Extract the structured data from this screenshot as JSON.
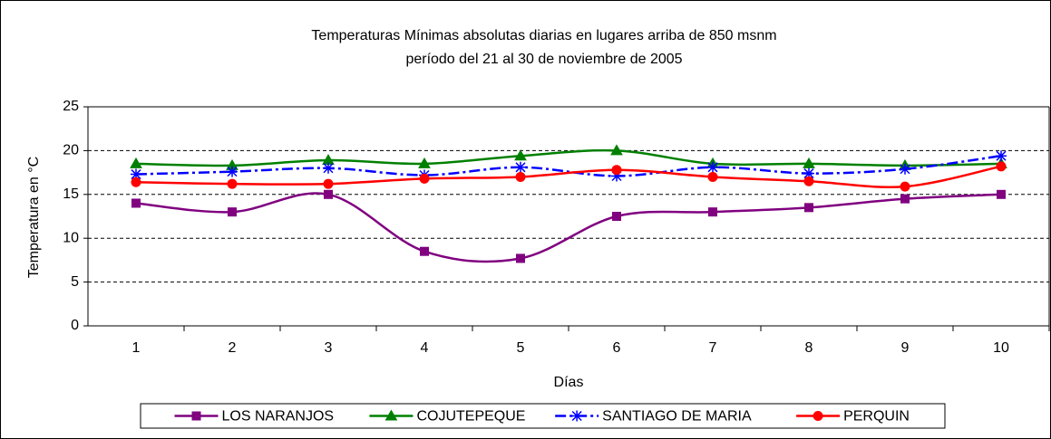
{
  "chart_data": {
    "type": "line",
    "title": "Temperaturas Mínimas absolutas diarias en lugares arriba de 850 msnm",
    "subtitle": "período del 21 al 30 de noviembre de 2005",
    "x_label": "Días",
    "y_label": "Temperatura en °C",
    "categories": [
      "1",
      "2",
      "3",
      "4",
      "5",
      "6",
      "7",
      "8",
      "9",
      "10"
    ],
    "series": [
      {
        "name": "LOS NARANJOS",
        "color": "#800080",
        "marker": "square",
        "dash": "solid",
        "values": [
          14,
          13,
          15,
          8.5,
          7.7,
          12.5,
          13,
          13.5,
          14.5,
          15
        ]
      },
      {
        "name": "COJUTEPEQUE",
        "color": "#008000",
        "marker": "triangle",
        "dash": "solid",
        "values": [
          18.5,
          18.3,
          18.9,
          18.5,
          19.4,
          20,
          18.5,
          18.5,
          18.3,
          18.5
        ]
      },
      {
        "name": "SANTIAGO DE MARIA",
        "color": "#0000FF",
        "marker": "asterisk",
        "dash": "dashdot",
        "values": [
          17.3,
          17.6,
          18,
          17.2,
          18.1,
          17.1,
          18.1,
          17.4,
          17.9,
          19.4
        ]
      },
      {
        "name": "PERQUIN",
        "color": "#FF0000",
        "marker": "circle",
        "dash": "solid",
        "values": [
          16.4,
          16.2,
          16.2,
          16.8,
          17,
          17.8,
          17,
          16.5,
          15.9,
          18.2
        ]
      }
    ],
    "ylim": [
      0,
      25
    ],
    "yticks": [
      0,
      5,
      10,
      15,
      20,
      25
    ],
    "grid": true,
    "smooth": true,
    "legend": "bottom"
  }
}
